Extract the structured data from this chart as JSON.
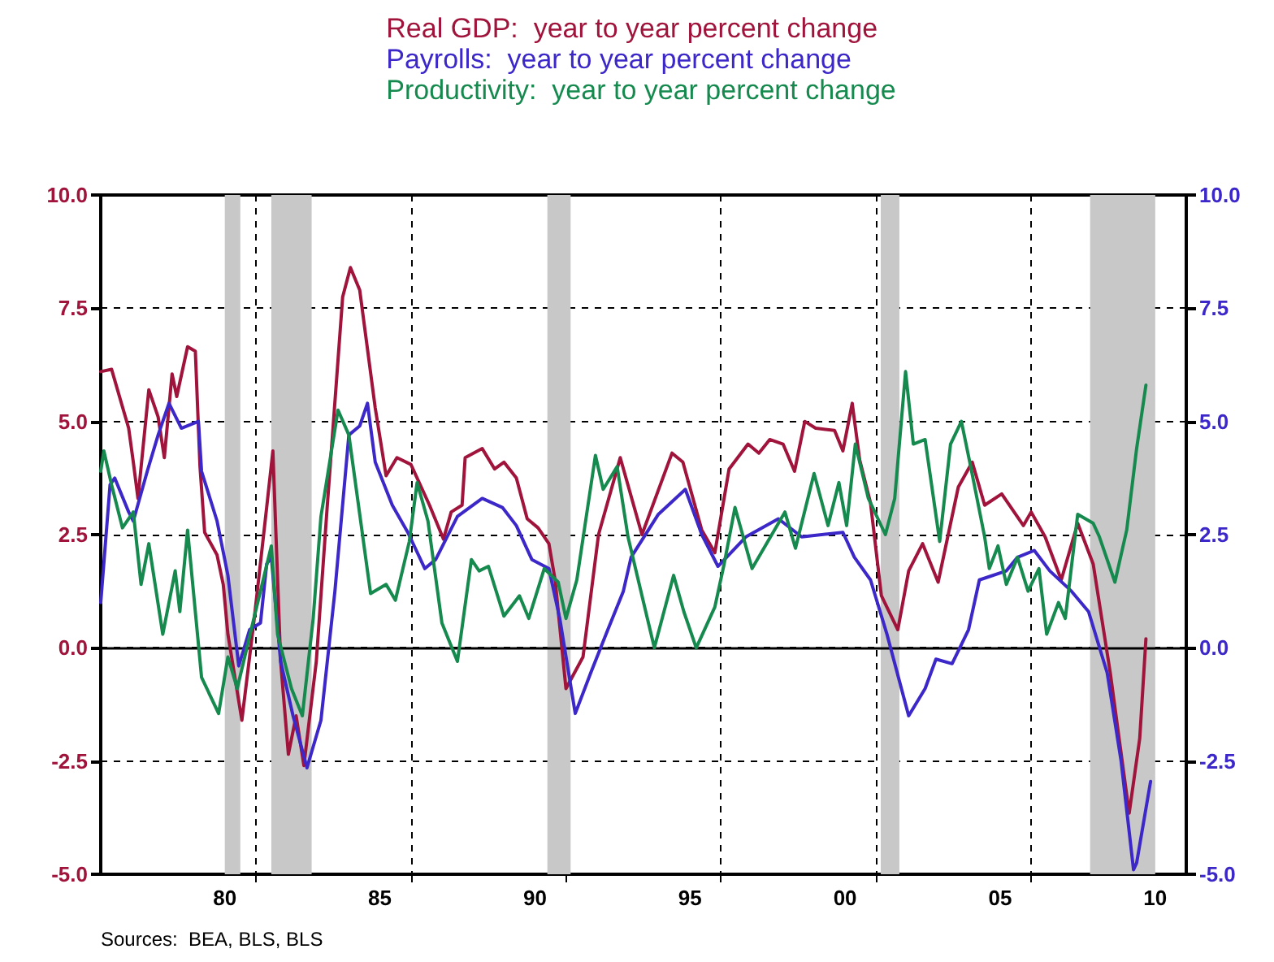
{
  "chart_data": {
    "type": "line",
    "xlim": [
      1976,
      2011
    ],
    "xticks": [
      {
        "value": 1980,
        "label": "80"
      },
      {
        "value": 1985,
        "label": "85"
      },
      {
        "value": 1990,
        "label": "90"
      },
      {
        "value": 1995,
        "label": "95"
      },
      {
        "value": 2000,
        "label": "00"
      },
      {
        "value": 2005,
        "label": "05"
      },
      {
        "value": 2010,
        "label": "10"
      },
      {
        "value": 1981,
        "label": null
      },
      {
        "value": 1986,
        "label": null
      },
      {
        "value": 1991,
        "label": null
      },
      {
        "value": 1996,
        "label": null
      },
      {
        "value": 2001,
        "label": null
      },
      {
        "value": 2006,
        "label": null
      }
    ],
    "ylim": [
      -5,
      10
    ],
    "yticks": [
      {
        "value": -5,
        "label": "-5.0"
      },
      {
        "value": -2.5,
        "label": "-2.5"
      },
      {
        "value": 0,
        "label": "0.0"
      },
      {
        "value": 2.5,
        "label": "2.5"
      },
      {
        "value": 5,
        "label": "5.0"
      },
      {
        "value": 7.5,
        "label": "7.5"
      },
      {
        "value": 10,
        "label": "10.0"
      }
    ],
    "y2lim": [
      -5,
      10
    ],
    "y2ticks": [
      {
        "value": -5,
        "label": "-5.0"
      },
      {
        "value": -2.5,
        "label": "-2.5"
      },
      {
        "value": 0,
        "label": "0.0"
      },
      {
        "value": 2.5,
        "label": "2.5"
      },
      {
        "value": 5,
        "label": "5.0"
      },
      {
        "value": 7.5,
        "label": "7.5"
      },
      {
        "value": 10,
        "label": "10.0"
      }
    ],
    "grid": true,
    "legend": "top",
    "marker": "none",
    "line_style": "solid",
    "ref_lines": [
      {
        "axis": "y",
        "value": 0,
        "color": "#000000",
        "line_style": "solid"
      }
    ],
    "bands": [
      {
        "axis": "x",
        "from": 1980.0,
        "to": 1980.5,
        "color": "#c8c8c8"
      },
      {
        "axis": "x",
        "from": 1981.5,
        "to": 1982.8,
        "color": "#c8c8c8"
      },
      {
        "axis": "x",
        "from": 1990.4,
        "to": 1991.15,
        "color": "#c8c8c8"
      },
      {
        "axis": "x",
        "from": 2001.15,
        "to": 2001.75,
        "color": "#c8c8c8"
      },
      {
        "axis": "x",
        "from": 2007.9,
        "to": 2010.0,
        "color": "#c8c8c8"
      }
    ],
    "annotations": [
      "Sources:  BEA, BLS, BLS"
    ],
    "series": [
      {
        "name": "Real GDP:  year to year percent change",
        "color": "#a0143c",
        "axis": "y",
        "x": [
          1976.0,
          1976.35,
          1976.9,
          1977.05,
          1977.2,
          1977.55,
          1977.85,
          1978.05,
          1978.3,
          1978.45,
          1978.8,
          1979.05,
          1979.2,
          1979.35,
          1979.75,
          1979.95,
          1980.1,
          1980.55,
          1980.95,
          1981.35,
          1981.55,
          1981.8,
          1982.05,
          1982.3,
          1982.55,
          1982.95,
          1983.3,
          1983.8,
          1984.05,
          1984.35,
          1984.85,
          1985.2,
          1985.55,
          1986.0,
          1986.6,
          1987.05,
          1987.3,
          1987.65,
          1987.75,
          1988.3,
          1988.7,
          1989.0,
          1989.4,
          1989.75,
          1990.1,
          1990.45,
          1990.65,
          1991.0,
          1991.55,
          1992.05,
          1992.75,
          1993.45,
          1994.42,
          1994.77,
          1995.38,
          1995.8,
          1996.26,
          1996.87,
          1997.22,
          1997.57,
          1998.0,
          1998.37,
          1998.7,
          1999.05,
          1999.66,
          1999.93,
          2000.23,
          2000.47,
          2000.82,
          2001.17,
          2001.7,
          2002.05,
          2002.5,
          2003.0,
          2003.65,
          2004.1,
          2004.5,
          2005.05,
          2005.75,
          2006.0,
          2006.45,
          2006.97,
          2007.5,
          2008.0,
          2008.55,
          2009.16,
          2009.5,
          2009.7
        ],
        "values": [
          6.1,
          6.15,
          4.85,
          4.1,
          3.3,
          5.7,
          5.1,
          4.2,
          6.05,
          5.55,
          6.65,
          6.55,
          4.0,
          2.55,
          2.05,
          1.4,
          0.3,
          -1.6,
          0.65,
          3.1,
          4.35,
          -0.3,
          -2.35,
          -1.5,
          -2.6,
          -0.3,
          3.1,
          7.75,
          8.4,
          7.9,
          5.3,
          3.8,
          4.2,
          4.05,
          3.15,
          2.4,
          3.0,
          3.15,
          4.2,
          4.4,
          3.95,
          4.1,
          3.75,
          2.85,
          2.65,
          2.3,
          1.5,
          -0.9,
          -0.2,
          2.5,
          4.2,
          2.5,
          4.3,
          4.1,
          2.6,
          2.1,
          3.95,
          4.5,
          4.3,
          4.6,
          4.5,
          3.9,
          5.0,
          4.85,
          4.8,
          4.35,
          5.4,
          4.15,
          3.2,
          1.15,
          0.4,
          1.7,
          2.3,
          1.45,
          3.55,
          4.1,
          3.15,
          3.4,
          2.7,
          3.0,
          2.45,
          1.5,
          2.75,
          1.85,
          -0.55,
          -3.65,
          -2.0,
          0.2
        ]
      },
      {
        "name": "Payrolls:  year to year percent change",
        "color": "#3c28c8",
        "axis": "y2",
        "x": [
          1976.0,
          1976.3,
          1976.45,
          1976.9,
          1977.05,
          1977.5,
          1977.85,
          1978.2,
          1978.6,
          1979.15,
          1979.25,
          1979.75,
          1980.1,
          1980.45,
          1980.8,
          1981.15,
          1981.35,
          1981.5,
          1981.8,
          1982.2,
          1982.65,
          1983.1,
          1983.55,
          1984.0,
          1984.35,
          1984.6,
          1984.85,
          1985.4,
          1985.9,
          1986.45,
          1986.8,
          1987.5,
          1988.3,
          1988.95,
          1989.4,
          1989.9,
          1990.45,
          1990.8,
          1991.3,
          1991.8,
          1992.35,
          1992.85,
          1993.1,
          1993.98,
          1994.85,
          1995.38,
          1995.9,
          1996.8,
          1997.85,
          1998.6,
          1999.93,
          2000.3,
          2000.82,
          2001.35,
          2002.05,
          2002.58,
          2002.93,
          2003.45,
          2003.98,
          2004.33,
          2005.2,
          2005.56,
          2006.1,
          2006.6,
          2007.3,
          2007.85,
          2008.45,
          2008.9,
          2009.3,
          2009.4,
          2009.85
        ],
        "values": [
          1.0,
          3.6,
          3.75,
          3.0,
          2.8,
          3.9,
          4.7,
          5.4,
          4.85,
          5.0,
          3.9,
          2.8,
          1.6,
          -0.4,
          0.4,
          0.55,
          1.85,
          2.0,
          -0.3,
          -1.5,
          -2.65,
          -1.6,
          1.25,
          4.7,
          4.9,
          5.4,
          4.1,
          3.15,
          2.55,
          1.75,
          1.95,
          2.9,
          3.3,
          3.1,
          2.7,
          1.95,
          1.75,
          0.65,
          -1.45,
          -0.55,
          0.4,
          1.25,
          2.0,
          2.95,
          3.5,
          2.5,
          1.8,
          2.45,
          2.85,
          2.45,
          2.55,
          2.0,
          1.5,
          0.3,
          -1.5,
          -0.9,
          -0.25,
          -0.35,
          0.4,
          1.5,
          1.7,
          2.0,
          2.15,
          1.7,
          1.25,
          0.8,
          -0.55,
          -2.5,
          -4.9,
          -4.75,
          -2.95
        ]
      },
      {
        "name": "Productivity:  year to year percent change",
        "color": "#168a4e",
        "axis": "y",
        "x": [
          1976.0,
          1976.1,
          1976.35,
          1976.7,
          1977.05,
          1977.3,
          1977.55,
          1978.0,
          1978.4,
          1978.55,
          1978.8,
          1979.25,
          1979.8,
          1980.1,
          1980.4,
          1980.85,
          1981.5,
          1981.7,
          1982.15,
          1982.5,
          1982.85,
          1983.1,
          1983.65,
          1984.0,
          1984.7,
          1985.2,
          1985.5,
          1985.95,
          1986.2,
          1986.55,
          1987.0,
          1987.5,
          1987.95,
          1988.2,
          1988.5,
          1989.0,
          1989.5,
          1989.8,
          1990.3,
          1990.75,
          1991.0,
          1991.35,
          1991.95,
          1992.2,
          1992.65,
          1993.0,
          1993.85,
          1994.47,
          1994.8,
          1995.2,
          1995.8,
          1996.1,
          1996.45,
          1997.0,
          1998.06,
          1998.4,
          1999.0,
          1999.45,
          1999.8,
          2000.05,
          2000.33,
          2000.75,
          2001.3,
          2001.6,
          2001.95,
          2002.2,
          2002.58,
          2003.05,
          2003.4,
          2003.75,
          2004.05,
          2004.5,
          2004.65,
          2004.93,
          2005.2,
          2005.56,
          2005.9,
          2006.25,
          2006.5,
          2006.88,
          2007.1,
          2007.5,
          2008.0,
          2008.2,
          2008.7,
          2009.08,
          2009.4,
          2009.7
        ],
        "values": [
          3.9,
          4.35,
          3.6,
          2.65,
          3.0,
          1.4,
          2.3,
          0.3,
          1.7,
          0.8,
          2.6,
          -0.65,
          -1.45,
          -0.2,
          -0.9,
          0.4,
          2.25,
          0.3,
          -0.9,
          -1.5,
          0.65,
          2.9,
          5.25,
          4.7,
          1.2,
          1.4,
          1.05,
          2.35,
          3.65,
          2.8,
          0.55,
          -0.3,
          1.95,
          1.7,
          1.8,
          0.7,
          1.15,
          0.65,
          1.75,
          1.45,
          0.65,
          1.5,
          4.25,
          3.5,
          4.0,
          2.45,
          0.0,
          1.6,
          0.8,
          0.0,
          0.9,
          1.85,
          3.1,
          1.75,
          3.0,
          2.2,
          3.85,
          2.7,
          3.65,
          2.7,
          4.5,
          3.3,
          2.5,
          3.3,
          6.1,
          4.5,
          4.6,
          2.35,
          4.5,
          5.0,
          4.0,
          2.45,
          1.75,
          2.25,
          1.4,
          2.0,
          1.25,
          1.75,
          0.3,
          1.0,
          0.65,
          2.95,
          2.75,
          2.45,
          1.45,
          2.6,
          4.4,
          5.8
        ]
      }
    ]
  }
}
